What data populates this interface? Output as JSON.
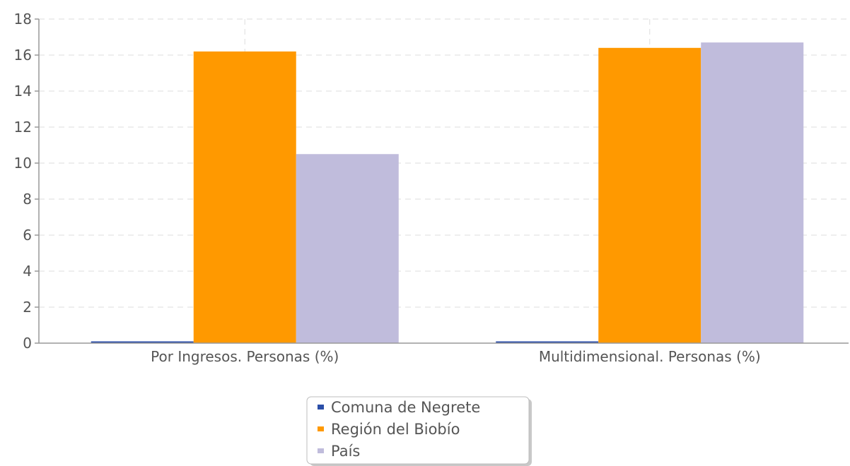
{
  "chart_data": {
    "type": "bar",
    "categories": [
      "Por Ingresos. Personas (%)",
      "Multidimensional. Personas (%)"
    ],
    "series": [
      {
        "name": "Comuna de Negrete",
        "color": "#2b4ea8",
        "values": [
          0,
          0
        ]
      },
      {
        "name": "Región del Biobío",
        "color": "#ff9900",
        "values": [
          16.2,
          16.4
        ]
      },
      {
        "name": "País",
        "color": "#c0bcdc",
        "values": [
          10.5,
          16.7
        ]
      }
    ],
    "title": "",
    "xlabel": "",
    "ylabel": "",
    "ylim": [
      0,
      18
    ],
    "yticks": [
      0,
      2,
      4,
      6,
      8,
      10,
      12,
      14,
      16,
      18
    ],
    "grid": true,
    "legend_position": "bottom-center"
  }
}
